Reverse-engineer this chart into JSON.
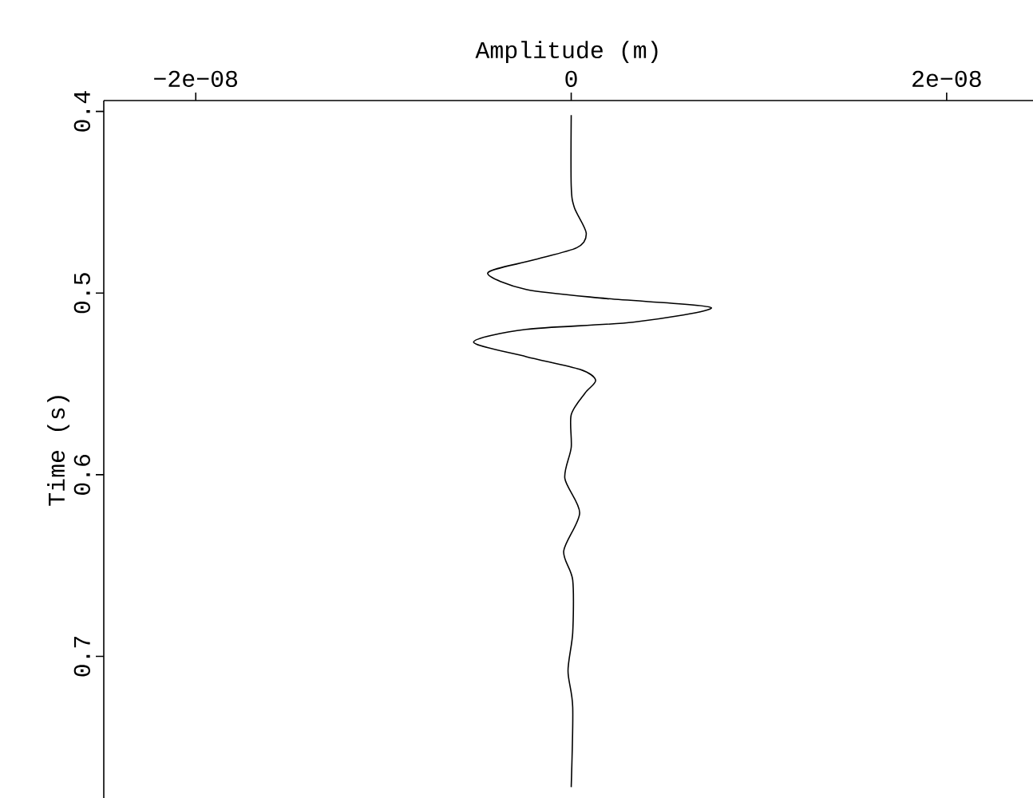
{
  "chart_data": {
    "type": "line",
    "xlabel": "Amplitude (m)",
    "ylabel": "Time (s)",
    "xlim": [
      -2.49e-08,
      2.46e-08
    ],
    "ylim": [
      0.778,
      0.394
    ],
    "xticks": [
      {
        "value": -2e-08,
        "label": "−2e−08"
      },
      0,
      {
        "value": 2e-08,
        "label": "2e−08"
      }
    ],
    "yticks": [
      0.4,
      0.5,
      0.6,
      0.7
    ],
    "series": [
      {
        "color": "#000000",
        "x": [
          0,
          0,
          1.7e-10,
          8e-10,
          3e-10,
          -2.1e-09,
          -4.45e-09,
          -2.4e-09,
          1.87e-09,
          7.46e-09,
          3.3e-09,
          -2.4e-09,
          -5.2e-09,
          -2.4e-09,
          4.5e-10,
          1.3e-09,
          7.4e-10,
          0,
          0,
          -3.4e-10,
          4.5e-10,
          -4e-10,
          8e-11,
          8e-11,
          -1.7e-10,
          8e-11,
          0
        ],
        "values": [
          0.402,
          0.441,
          0.453,
          0.467,
          0.475,
          0.482,
          0.489,
          0.498,
          0.503,
          0.508,
          0.516,
          0.52,
          0.527,
          0.535,
          0.542,
          0.548,
          0.555,
          0.567,
          0.585,
          0.602,
          0.621,
          0.642,
          0.658,
          0.687,
          0.708,
          0.728,
          0.772
        ]
      }
    ],
    "line_style": "solid",
    "marker": "none"
  }
}
